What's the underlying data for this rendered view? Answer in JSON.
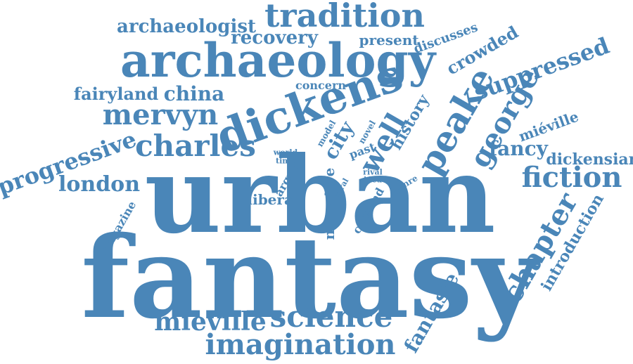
{
  "color": "#4a86b8",
  "words": [
    {
      "text": "urban"
    },
    {
      "text": "fantasy"
    },
    {
      "text": "archaeology"
    },
    {
      "text": "dickens"
    },
    {
      "text": "tradition"
    },
    {
      "text": "peake"
    },
    {
      "text": "george"
    },
    {
      "text": "charles"
    },
    {
      "text": "mervyn"
    },
    {
      "text": "progressive"
    },
    {
      "text": "china"
    },
    {
      "text": "fairyland"
    },
    {
      "text": "london"
    },
    {
      "text": "science"
    },
    {
      "text": "mieville"
    },
    {
      "text": "imagination"
    },
    {
      "text": "fiction"
    },
    {
      "text": "chapter"
    },
    {
      "text": "suppressed"
    },
    {
      "text": "fancy"
    },
    {
      "text": "dickensian"
    },
    {
      "text": "miéville"
    },
    {
      "text": "crowded"
    },
    {
      "text": "archaeologist"
    },
    {
      "text": "recovery"
    },
    {
      "text": "present"
    },
    {
      "text": "discusses"
    },
    {
      "text": "concern"
    },
    {
      "text": "well"
    },
    {
      "text": "history"
    },
    {
      "text": "city"
    },
    {
      "text": "past"
    },
    {
      "text": "novel"
    },
    {
      "text": "model"
    },
    {
      "text": "world"
    },
    {
      "text": "time"
    },
    {
      "text": "argue"
    },
    {
      "text": "liberal"
    },
    {
      "text": "narrative"
    },
    {
      "text": "rural"
    },
    {
      "text": "rival"
    },
    {
      "text": "idea"
    },
    {
      "text": "genre"
    },
    {
      "text": "contend"
    },
    {
      "text": "magazine"
    },
    {
      "text": "introduction"
    },
    {
      "text": "fantasie"
    }
  ]
}
